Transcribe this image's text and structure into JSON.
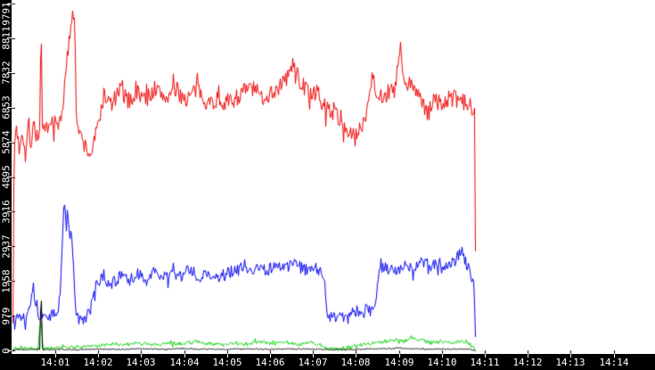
{
  "chart_data": {
    "type": "line",
    "title": "",
    "x_unit": "minutes_after_14:00",
    "x_axis": {
      "tick_labels": [
        "14:01",
        "14:02",
        "14:03",
        "14:04",
        "14:05",
        "14:06",
        "14:07",
        "14:08",
        "14:09",
        "14:10",
        "14:11",
        "14:12",
        "14:13",
        "14:14"
      ],
      "first_tick_minute": 1,
      "minutes_per_tick": 1,
      "visible_range_minutes": [
        0,
        13.95
      ]
    },
    "y_axis": {
      "tick_values": [
        0,
        979,
        1958,
        2937,
        3916,
        4895,
        5874,
        6853,
        7832,
        8811,
        9791
      ],
      "range": [
        0,
        9791
      ]
    },
    "axis_style": {
      "strip_color": "#000000",
      "label_color": "#ffffff",
      "plot_background": "#ffffff"
    },
    "legend": null,
    "grid": false,
    "data_end_minute": 10.78,
    "series": [
      {
        "name": "red-series",
        "color": "#ee0000",
        "noise": 260,
        "points": [
          [
            0.0,
            0
          ],
          [
            0.03,
            5600
          ],
          [
            0.08,
            6400
          ],
          [
            0.15,
            5700
          ],
          [
            0.22,
            6300
          ],
          [
            0.3,
            5500
          ],
          [
            0.36,
            6400
          ],
          [
            0.42,
            5800
          ],
          [
            0.48,
            6500
          ],
          [
            0.56,
            6000
          ],
          [
            0.63,
            6300
          ],
          [
            0.66,
            9560
          ],
          [
            0.69,
            6200
          ],
          [
            0.8,
            6100
          ],
          [
            0.92,
            6500
          ],
          [
            1.05,
            6300
          ],
          [
            1.15,
            6800
          ],
          [
            1.22,
            7600
          ],
          [
            1.3,
            8600
          ],
          [
            1.36,
            9300
          ],
          [
            1.41,
            9790
          ],
          [
            1.45,
            9200
          ],
          [
            1.47,
            6800
          ],
          [
            1.55,
            6100
          ],
          [
            1.68,
            5800
          ],
          [
            1.8,
            5500
          ],
          [
            1.92,
            6000
          ],
          [
            2.02,
            6600
          ],
          [
            2.12,
            7200
          ],
          [
            2.3,
            6950
          ],
          [
            2.5,
            7350
          ],
          [
            2.7,
            7050
          ],
          [
            2.9,
            7300
          ],
          [
            3.1,
            7100
          ],
          [
            3.3,
            7400
          ],
          [
            3.55,
            7150
          ],
          [
            3.8,
            7350
          ],
          [
            4.05,
            7100
          ],
          [
            4.3,
            7400
          ],
          [
            4.55,
            7000
          ],
          [
            4.8,
            7100
          ],
          [
            5.05,
            7000
          ],
          [
            5.3,
            7250
          ],
          [
            5.55,
            7450
          ],
          [
            5.8,
            7150
          ],
          [
            6.05,
            7300
          ],
          [
            6.3,
            7550
          ],
          [
            6.55,
            8100
          ],
          [
            6.7,
            7550
          ],
          [
            6.9,
            7300
          ],
          [
            7.1,
            7150
          ],
          [
            7.3,
            6850
          ],
          [
            7.5,
            6750
          ],
          [
            7.7,
            6350
          ],
          [
            7.95,
            6000
          ],
          [
            8.1,
            6250
          ],
          [
            8.25,
            6850
          ],
          [
            8.37,
            7850
          ],
          [
            8.5,
            7150
          ],
          [
            8.7,
            7250
          ],
          [
            8.9,
            7350
          ],
          [
            9.02,
            8600
          ],
          [
            9.12,
            7400
          ],
          [
            9.3,
            7550
          ],
          [
            9.5,
            7150
          ],
          [
            9.62,
            6650
          ],
          [
            9.8,
            7100
          ],
          [
            10.0,
            6950
          ],
          [
            10.2,
            7150
          ],
          [
            10.4,
            7050
          ],
          [
            10.58,
            6950
          ],
          [
            10.76,
            6850
          ],
          [
            10.78,
            0
          ]
        ]
      },
      {
        "name": "blue-series",
        "color": "#0000ee",
        "noise": 185,
        "points": [
          [
            0.0,
            950
          ],
          [
            0.15,
            1000
          ],
          [
            0.3,
            950
          ],
          [
            0.42,
            1500
          ],
          [
            0.47,
            1850
          ],
          [
            0.53,
            1400
          ],
          [
            0.62,
            1000
          ],
          [
            0.75,
            950
          ],
          [
            0.9,
            1000
          ],
          [
            1.05,
            1050
          ],
          [
            1.1,
            1500
          ],
          [
            1.16,
            3200
          ],
          [
            1.2,
            4450
          ],
          [
            1.24,
            3600
          ],
          [
            1.28,
            3950
          ],
          [
            1.33,
            3150
          ],
          [
            1.37,
            3250
          ],
          [
            1.42,
            2300
          ],
          [
            1.45,
            1400
          ],
          [
            1.5,
            900
          ],
          [
            1.62,
            850
          ],
          [
            1.72,
            950
          ],
          [
            1.8,
            1100
          ],
          [
            1.88,
            1600
          ],
          [
            1.97,
            1900
          ],
          [
            2.12,
            2050
          ],
          [
            2.32,
            1900
          ],
          [
            2.52,
            2100
          ],
          [
            2.72,
            1980
          ],
          [
            2.92,
            2150
          ],
          [
            3.12,
            2020
          ],
          [
            3.32,
            2220
          ],
          [
            3.52,
            2050
          ],
          [
            3.72,
            2250
          ],
          [
            3.92,
            2100
          ],
          [
            4.12,
            2300
          ],
          [
            4.32,
            2080
          ],
          [
            4.52,
            2220
          ],
          [
            4.72,
            1950
          ],
          [
            4.92,
            2150
          ],
          [
            5.12,
            2250
          ],
          [
            5.32,
            2320
          ],
          [
            5.52,
            2200
          ],
          [
            5.72,
            2400
          ],
          [
            5.92,
            2280
          ],
          [
            6.12,
            2430
          ],
          [
            6.32,
            2300
          ],
          [
            6.52,
            2500
          ],
          [
            6.72,
            2330
          ],
          [
            6.9,
            2220
          ],
          [
            7.05,
            2350
          ],
          [
            7.2,
            2150
          ],
          [
            7.27,
            1950
          ],
          [
            7.3,
            1100
          ],
          [
            7.45,
            950
          ],
          [
            7.6,
            1050
          ],
          [
            7.78,
            900
          ],
          [
            7.92,
            1100
          ],
          [
            8.08,
            1000
          ],
          [
            8.22,
            1150
          ],
          [
            8.38,
            1080
          ],
          [
            8.46,
            1350
          ],
          [
            8.53,
            2300
          ],
          [
            8.72,
            2350
          ],
          [
            8.92,
            2260
          ],
          [
            9.12,
            2400
          ],
          [
            9.32,
            2320
          ],
          [
            9.52,
            2500
          ],
          [
            9.72,
            2380
          ],
          [
            9.92,
            2460
          ],
          [
            10.12,
            2420
          ],
          [
            10.32,
            2600
          ],
          [
            10.46,
            2900
          ],
          [
            10.56,
            2400
          ],
          [
            10.66,
            2250
          ],
          [
            10.74,
            1900
          ],
          [
            10.78,
            0
          ]
        ]
      },
      {
        "name": "green-series",
        "color": "#00d000",
        "noise": 55,
        "points": [
          [
            0.0,
            60
          ],
          [
            0.3,
            80
          ],
          [
            0.58,
            60
          ],
          [
            0.66,
            1000
          ],
          [
            0.7,
            80
          ],
          [
            0.95,
            70
          ],
          [
            1.25,
            90
          ],
          [
            1.55,
            110
          ],
          [
            1.85,
            130
          ],
          [
            2.15,
            170
          ],
          [
            2.45,
            200
          ],
          [
            2.75,
            180
          ],
          [
            3.05,
            220
          ],
          [
            3.35,
            175
          ],
          [
            3.65,
            235
          ],
          [
            3.95,
            185
          ],
          [
            4.25,
            265
          ],
          [
            4.55,
            205
          ],
          [
            4.85,
            165
          ],
          [
            5.15,
            225
          ],
          [
            5.45,
            185
          ],
          [
            5.75,
            260
          ],
          [
            6.05,
            205
          ],
          [
            6.35,
            245
          ],
          [
            6.65,
            185
          ],
          [
            6.95,
            225
          ],
          [
            7.15,
            165
          ],
          [
            7.32,
            70
          ],
          [
            7.55,
            45
          ],
          [
            7.82,
            85
          ],
          [
            8.05,
            155
          ],
          [
            8.35,
            205
          ],
          [
            8.65,
            255
          ],
          [
            8.95,
            305
          ],
          [
            9.12,
            265
          ],
          [
            9.27,
            385
          ],
          [
            9.47,
            305
          ],
          [
            9.72,
            225
          ],
          [
            9.97,
            265
          ],
          [
            10.22,
            205
          ],
          [
            10.47,
            285
          ],
          [
            10.62,
            225
          ],
          [
            10.78,
            0
          ]
        ]
      },
      {
        "name": "black-series",
        "color": "#000000",
        "noise": 16,
        "points": [
          [
            0.0,
            30
          ],
          [
            0.5,
            40
          ],
          [
            0.63,
            30
          ],
          [
            0.66,
            1920
          ],
          [
            0.69,
            30
          ],
          [
            1.0,
            40
          ],
          [
            1.5,
            30
          ],
          [
            2.0,
            50
          ],
          [
            2.5,
            40
          ],
          [
            3.0,
            60
          ],
          [
            3.5,
            45
          ],
          [
            4.0,
            60
          ],
          [
            4.5,
            50
          ],
          [
            5.0,
            40
          ],
          [
            5.5,
            60
          ],
          [
            6.0,
            45
          ],
          [
            6.5,
            60
          ],
          [
            7.0,
            50
          ],
          [
            7.5,
            30
          ],
          [
            8.0,
            45
          ],
          [
            8.5,
            60
          ],
          [
            9.0,
            80
          ],
          [
            9.3,
            60
          ],
          [
            9.6,
            45
          ],
          [
            10.0,
            55
          ],
          [
            10.3,
            45
          ],
          [
            10.6,
            50
          ],
          [
            10.78,
            0
          ]
        ]
      }
    ]
  }
}
